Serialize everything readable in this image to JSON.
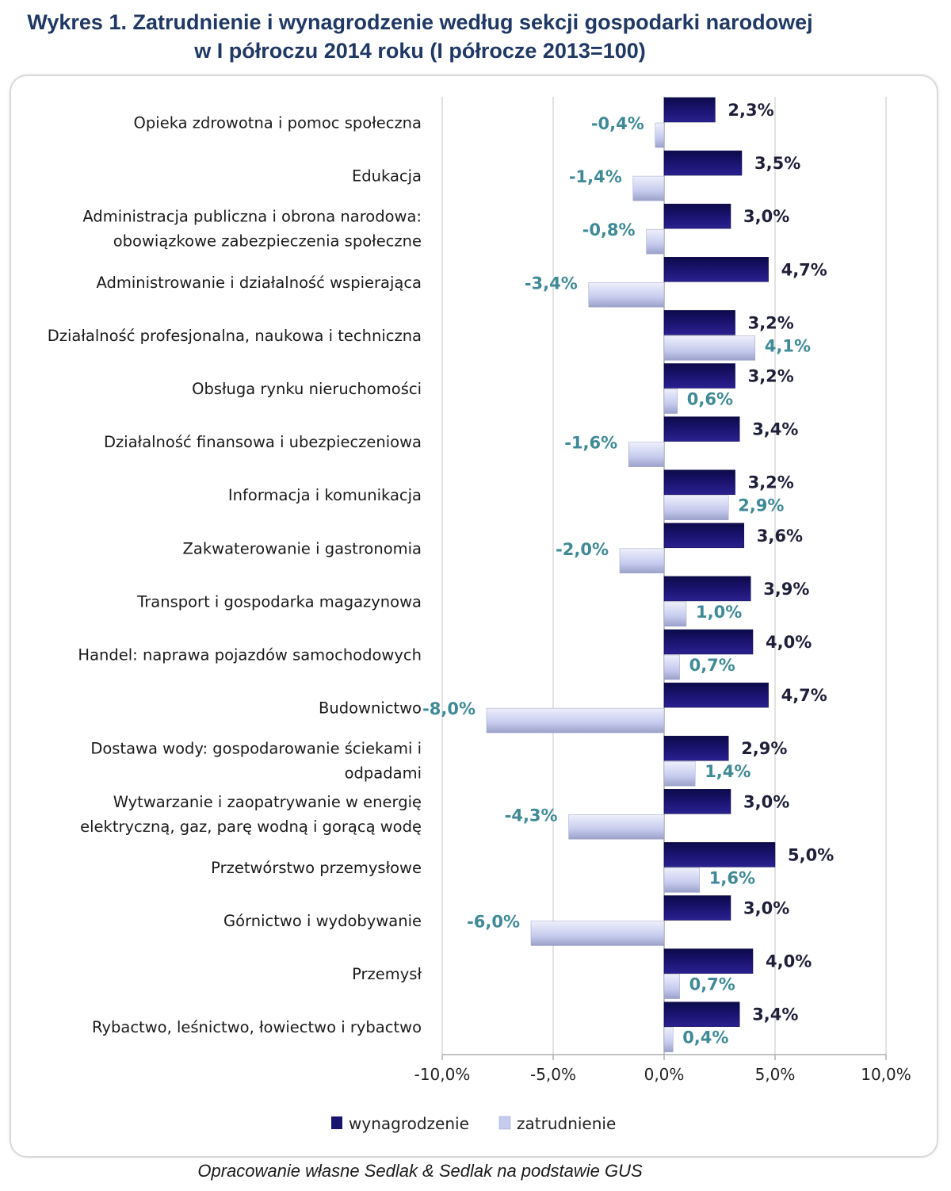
{
  "title_line1": "Wykres 1. Zatrudnienie i wynagrodzenie według sekcji gospodarki narodowej",
  "title_line2": "w I półroczu 2014 roku (I półrocze 2013=100)",
  "source": "Opracowanie własne Sedlak & Sedlak na podstawie GUS",
  "colors": {
    "wynagrodzenie": "#1a1470",
    "zatrudnienie": "#c6cbee",
    "label_wyn": "#1f1f3a",
    "label_zat": "#3f8a96",
    "grid": "#d9d9d9",
    "title": "#1f3864"
  },
  "chart_data": {
    "type": "bar",
    "orientation": "horizontal",
    "categories": [
      [
        "Opieka zdrowotna i pomoc społeczna"
      ],
      [
        "Edukacja"
      ],
      [
        "Administracja publiczna i obrona narodowa:",
        "obowiązkowe zabezpieczenia społeczne"
      ],
      [
        "Administrowanie i działalność wspierająca"
      ],
      [
        "Działalność profesjonalna, naukowa i techniczna"
      ],
      [
        "Obsługa rynku nieruchomości"
      ],
      [
        "Działalność finansowa i ubezpieczeniowa"
      ],
      [
        "Informacja i komunikacja"
      ],
      [
        "Zakwaterowanie i gastronomia"
      ],
      [
        "Transport i gospodarka magazynowa"
      ],
      [
        "Handel: naprawa pojazdów samochodowych"
      ],
      [
        "Budownictwo"
      ],
      [
        "Dostawa wody: gospodarowanie ściekami i",
        "odpadami"
      ],
      [
        "Wytwarzanie i zaopatrywanie w energię",
        "elektryczną, gaz, parę wodną i gorącą wodę"
      ],
      [
        "Przetwórstwo przemysłowe"
      ],
      [
        "Górnictwo i wydobywanie"
      ],
      [
        "Przemysł"
      ],
      [
        "Rybactwo, leśnictwo, łowiectwo i rybactwo"
      ]
    ],
    "series": [
      {
        "name": "wynagrodzenie",
        "values": [
          2.3,
          3.5,
          3.0,
          4.7,
          3.2,
          3.2,
          3.4,
          3.2,
          3.6,
          3.9,
          4.0,
          4.7,
          2.9,
          3.0,
          5.0,
          3.0,
          4.0,
          3.4
        ],
        "labels": [
          "2,3%",
          "3,5%",
          "3,0%",
          "4,7%",
          "3,2%",
          "3,2%",
          "3,4%",
          "3,2%",
          "3,6%",
          "3,9%",
          "4,0%",
          "4,7%",
          "2,9%",
          "3,0%",
          "5,0%",
          "3,0%",
          "4,0%",
          "3,4%"
        ]
      },
      {
        "name": "zatrudnienie",
        "values": [
          -0.4,
          -1.4,
          -0.8,
          -3.4,
          4.1,
          0.6,
          -1.6,
          2.9,
          -2.0,
          1.0,
          0.7,
          -8.0,
          1.4,
          -4.3,
          1.6,
          -6.0,
          0.7,
          0.4
        ],
        "labels": [
          "-0,4%",
          "-1,4%",
          "-0,8%",
          "-3,4%",
          "4,1%",
          "0,6%",
          "-1,6%",
          "2,9%",
          "-2,0%",
          "1,0%",
          "0,7%",
          "-8,0%",
          "1,4%",
          "-4,3%",
          "1,6%",
          "-6,0%",
          "0,7%",
          "0,4%"
        ]
      }
    ],
    "xlim": [
      -10,
      10
    ],
    "xticks": [
      -10,
      -5,
      0,
      5,
      10
    ],
    "xtick_labels": [
      "-10,0%",
      "-5,0%",
      "0,0%",
      "5,0%",
      "10,0%"
    ],
    "grid": "vertical",
    "legend_position": "bottom-center",
    "legend": [
      "wynagrodzenie",
      "zatrudnienie"
    ]
  }
}
